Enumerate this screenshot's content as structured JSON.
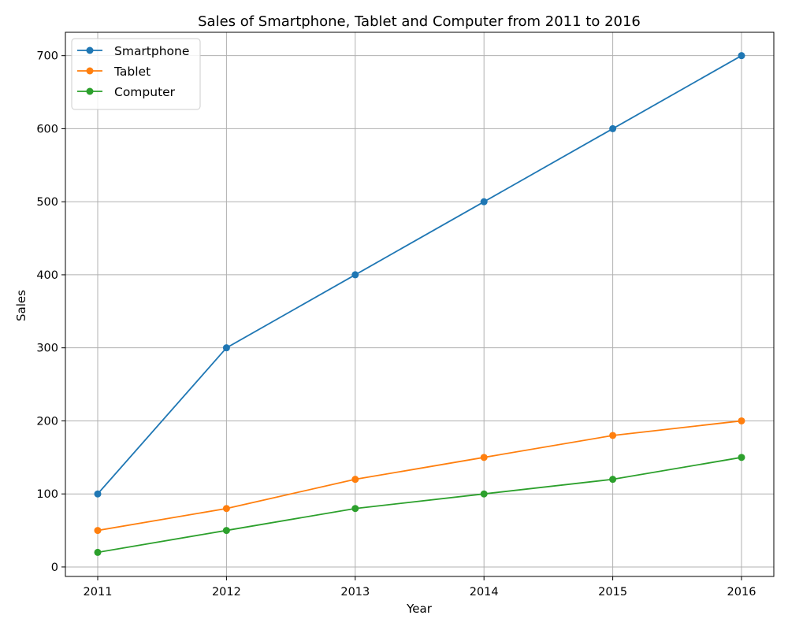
{
  "chart_data": {
    "type": "line",
    "title": "Sales of Smartphone, Tablet and Computer from 2011 to 2016",
    "xlabel": "Year",
    "ylabel": "Sales",
    "categories": [
      "2011",
      "2012",
      "2013",
      "2014",
      "2015",
      "2016"
    ],
    "yticks": [
      "0",
      "100",
      "200",
      "300",
      "400",
      "500",
      "600",
      "700"
    ],
    "ylim": [
      -13,
      732
    ],
    "grid": true,
    "legend_position": "top-left",
    "markers": "circle",
    "series": [
      {
        "name": "Smartphone",
        "color": "#1f77b4",
        "values": [
          100,
          300,
          400,
          500,
          600,
          700
        ]
      },
      {
        "name": "Tablet",
        "color": "#ff7f0e",
        "values": [
          50,
          80,
          120,
          150,
          180,
          200
        ]
      },
      {
        "name": "Computer",
        "color": "#2ca02c",
        "values": [
          20,
          50,
          80,
          100,
          120,
          150
        ]
      }
    ]
  }
}
